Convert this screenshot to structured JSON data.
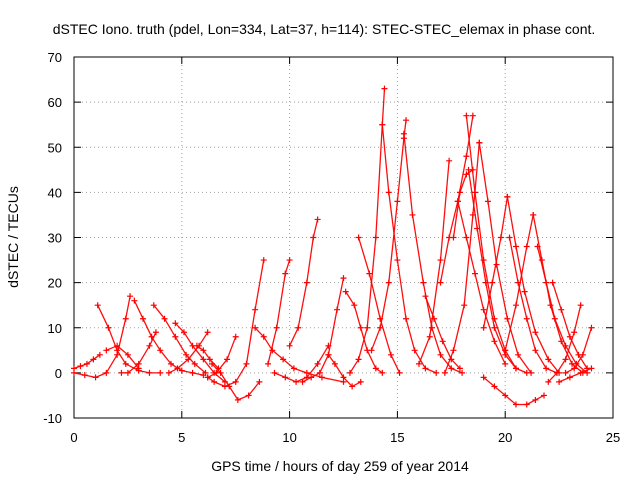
{
  "chart_data": {
    "type": "scatter",
    "title": "dSTEC Iono. truth (pdel, Lon=334, Lat=37, h=114): STEC-STEC_elemax in phase cont.",
    "xlabel": "GPS time / hours of day 259 of year 2014",
    "ylabel": "dSTEC  / TECUs",
    "xlim": [
      0,
      25
    ],
    "ylim": [
      -10,
      70
    ],
    "xticks": [
      "0",
      "5",
      "10",
      "15",
      "20",
      "25"
    ],
    "yticks": [
      "-10",
      "0",
      "10",
      "20",
      "30",
      "40",
      "50",
      "60",
      "70"
    ],
    "grid": true,
    "marker": "plus",
    "color": "#ff0000",
    "series": [
      {
        "x": [
          0.0,
          0.3,
          0.6,
          0.9,
          1.2
        ],
        "y": [
          1,
          1.5,
          2,
          3,
          4
        ]
      },
      {
        "x": [
          0.0,
          0.5,
          1.0,
          1.5,
          2.0,
          2.4,
          2.6
        ],
        "y": [
          0,
          -0.5,
          -1,
          0,
          4,
          12,
          17
        ]
      },
      {
        "x": [
          1.1,
          1.6,
          2.0,
          2.4,
          3.0,
          3.5,
          4.0
        ],
        "y": [
          15,
          10,
          5,
          2,
          0.5,
          0,
          0
        ]
      },
      {
        "x": [
          1.5,
          2.0,
          2.5,
          3.0
        ],
        "y": [
          5,
          6,
          4,
          1
        ]
      },
      {
        "x": [
          2.2,
          2.5,
          3.0,
          3.5,
          3.8
        ],
        "y": [
          0,
          0,
          2,
          6,
          9
        ]
      },
      {
        "x": [
          2.8,
          3.2,
          3.6,
          4.0,
          4.5,
          5.0,
          5.5,
          6.0
        ],
        "y": [
          16,
          12,
          8,
          5,
          2,
          0.5,
          0,
          -0.5
        ]
      },
      {
        "x": [
          3.7,
          4.2,
          4.7,
          5.2,
          5.6,
          6.1
        ],
        "y": [
          15,
          12,
          8,
          4,
          2,
          0
        ]
      },
      {
        "x": [
          4.4,
          4.8,
          5.3,
          5.8,
          6.2
        ],
        "y": [
          0,
          1,
          3,
          6,
          9
        ]
      },
      {
        "x": [
          4.7,
          5.1,
          5.5,
          6.0,
          6.5,
          7.0
        ],
        "y": [
          11,
          9,
          6,
          3,
          0,
          -2
        ]
      },
      {
        "x": [
          5.7,
          6.0,
          6.3,
          6.7
        ],
        "y": [
          6,
          5,
          3,
          1
        ]
      },
      {
        "x": [
          6.2,
          6.5,
          7.0,
          7.5,
          8.0,
          8.4,
          8.8
        ],
        "y": [
          -1,
          -2,
          -3,
          -2,
          2,
          14,
          25
        ]
      },
      {
        "x": [
          6.4,
          6.8,
          7.2,
          7.6,
          8.1,
          8.6
        ],
        "y": [
          2,
          0,
          -3,
          -6,
          -5,
          -2
        ]
      },
      {
        "x": [
          6.2,
          6.6,
          7.1,
          7.5
        ],
        "y": [
          -1,
          0,
          3,
          8
        ]
      },
      {
        "x": [
          8.4,
          8.8,
          9.2,
          9.7,
          10.2,
          10.8,
          11.5,
          12.5
        ],
        "y": [
          10,
          8,
          5,
          3,
          1,
          0,
          -1,
          -2
        ]
      },
      {
        "x": [
          9.0,
          9.4,
          9.8,
          10.0
        ],
        "y": [
          2,
          10,
          22,
          25
        ]
      },
      {
        "x": [
          9.3,
          9.8,
          10.3,
          10.8,
          11.3,
          11.8
        ],
        "y": [
          0,
          -1,
          -2,
          -1,
          2,
          6
        ]
      },
      {
        "x": [
          10.0,
          10.4,
          10.8,
          11.1,
          11.3
        ],
        "y": [
          6,
          10,
          20,
          30,
          34
        ]
      },
      {
        "x": [
          10.6,
          11.0,
          11.4,
          11.8,
          12.2,
          12.5
        ],
        "y": [
          -2,
          -1,
          0,
          4,
          14,
          21
        ]
      },
      {
        "x": [
          11.8,
          12.1,
          12.5,
          12.9,
          13.3
        ],
        "y": [
          4,
          2,
          -1,
          -3,
          -2
        ]
      },
      {
        "x": [
          12.6,
          13.0,
          13.3,
          13.6,
          14.0,
          14.3
        ],
        "y": [
          18,
          15,
          10,
          5,
          1,
          0
        ]
      },
      {
        "x": [
          12.8,
          13.2,
          13.6,
          14.0,
          14.3,
          14.4
        ],
        "y": [
          0,
          3,
          10,
          30,
          55,
          63
        ]
      },
      {
        "x": [
          14.3,
          14.6,
          15.0,
          15.4,
          15.8,
          16.3,
          16.8
        ],
        "y": [
          55,
          40,
          25,
          12,
          5,
          1,
          0
        ]
      },
      {
        "x": [
          13.8,
          14.2,
          14.6,
          15.0,
          15.3,
          15.4
        ],
        "y": [
          5,
          10,
          20,
          38,
          52,
          56
        ]
      },
      {
        "x": [
          15.3,
          15.7,
          16.2,
          16.6,
          17.0,
          17.5,
          18.0
        ],
        "y": [
          53,
          35,
          20,
          10,
          4,
          1,
          0
        ]
      },
      {
        "x": [
          13.2,
          13.7,
          14.2,
          14.7,
          15.1
        ],
        "y": [
          30,
          22,
          12,
          4,
          0
        ]
      },
      {
        "x": [
          16.3,
          16.7,
          17.1,
          17.5,
          17.9
        ],
        "y": [
          17,
          12,
          7,
          3,
          1
        ]
      },
      {
        "x": [
          16.0,
          16.5,
          17.0,
          17.4
        ],
        "y": [
          2,
          8,
          25,
          47
        ]
      },
      {
        "x": [
          17.0,
          17.4,
          17.8,
          18.2,
          18.5
        ],
        "y": [
          20,
          30,
          38,
          48,
          57
        ]
      },
      {
        "x": [
          18.2,
          18.6,
          19.0,
          19.5,
          20.0,
          20.5
        ],
        "y": [
          57,
          40,
          25,
          12,
          5,
          1
        ]
      },
      {
        "x": [
          17.6,
          17.9,
          18.2,
          18.5
        ],
        "y": [
          30,
          40,
          44,
          45
        ]
      },
      {
        "x": [
          18.3,
          18.7,
          19.1,
          19.5,
          20.0,
          20.5,
          21.0
        ],
        "y": [
          45,
          32,
          20,
          10,
          4,
          1,
          0
        ]
      },
      {
        "x": [
          17.2,
          17.6,
          18.1,
          18.5,
          18.8
        ],
        "y": [
          0,
          5,
          15,
          35,
          51
        ]
      },
      {
        "x": [
          18.8,
          19.2,
          19.6,
          20.1,
          20.6,
          21.2
        ],
        "y": [
          51,
          38,
          24,
          12,
          4,
          0
        ]
      },
      {
        "x": [
          17.8,
          18.2,
          18.6,
          19.0,
          19.5,
          20.0
        ],
        "y": [
          38,
          30,
          22,
          14,
          7,
          2
        ]
      },
      {
        "x": [
          19.0,
          19.4,
          19.8,
          20.1
        ],
        "y": [
          10,
          20,
          30,
          39
        ]
      },
      {
        "x": [
          20.1,
          20.5,
          20.9,
          21.4,
          22.0,
          22.5
        ],
        "y": [
          39,
          28,
          18,
          9,
          3,
          0
        ]
      },
      {
        "x": [
          20.2,
          20.6,
          21.0,
          21.4,
          21.9,
          22.4
        ],
        "y": [
          30,
          20,
          12,
          5,
          1,
          0
        ]
      },
      {
        "x": [
          19.0,
          19.5,
          20.0,
          20.5,
          21.0,
          21.4,
          21.8
        ],
        "y": [
          -1,
          -3,
          -5,
          -7,
          -7,
          -6,
          -5
        ]
      },
      {
        "x": [
          20.0,
          20.5,
          21.0,
          21.3
        ],
        "y": [
          5,
          15,
          28,
          35
        ]
      },
      {
        "x": [
          21.3,
          21.7,
          22.1,
          22.6,
          23.1,
          23.6
        ],
        "y": [
          35,
          25,
          15,
          7,
          2,
          0
        ]
      },
      {
        "x": [
          21.5,
          21.9,
          22.3,
          22.8,
          23.3,
          23.8
        ],
        "y": [
          28,
          20,
          12,
          6,
          2,
          0
        ]
      },
      {
        "x": [
          22.2,
          22.6,
          23.0,
          23.4,
          23.8
        ],
        "y": [
          20,
          14,
          8,
          4,
          1
        ]
      },
      {
        "x": [
          22.0,
          22.4,
          22.8,
          23.2,
          23.5
        ],
        "y": [
          -2,
          0,
          3,
          9,
          15
        ]
      },
      {
        "x": [
          22.8,
          23.2,
          23.6,
          24.0
        ],
        "y": [
          0,
          1,
          4,
          10
        ]
      },
      {
        "x": [
          22.5,
          23.0,
          23.5,
          24.0
        ],
        "y": [
          -2,
          -1,
          0,
          1
        ]
      }
    ]
  }
}
